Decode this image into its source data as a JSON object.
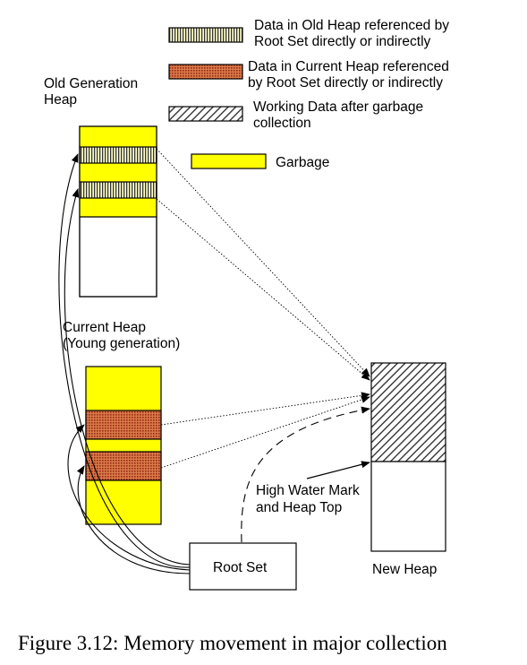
{
  "legend": {
    "old_heap_ref": {
      "line1": "Data in Old Heap referenced by",
      "line2": "Root Set directly or indirectly"
    },
    "current_heap_ref": {
      "line1": "Data in Current Heap referenced",
      "line2": "by Root Set directly or indirectly"
    },
    "working_data": {
      "line1": "Working Data after garbage",
      "line2": "collection"
    },
    "garbage": "Garbage"
  },
  "labels": {
    "old_gen_line1": "Old Generation",
    "old_gen_line2": "Heap",
    "current_line1": "Current Heap",
    "current_line2": "(Young generation)",
    "hwm_line1": "High Water Mark",
    "hwm_line2": "and Heap Top",
    "root_set": "Root Set",
    "new_heap": "New Heap"
  },
  "caption": "Figure 3.12: Memory movement in major collection",
  "colors": {
    "garbage": "#ffff00",
    "current_ref": "#b83a1a",
    "old_ref_stripe": "#555555",
    "hatch": "#333333"
  }
}
